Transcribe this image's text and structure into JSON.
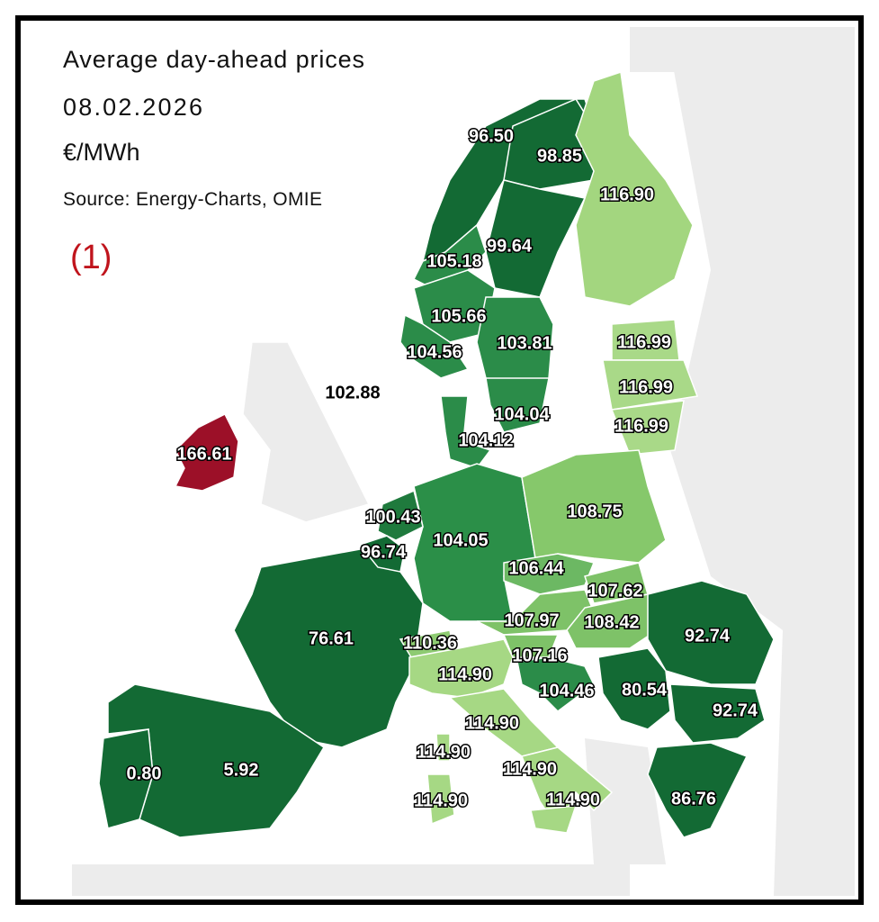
{
  "header": {
    "title": "Average day-ahead prices",
    "date": "08.02.2026",
    "unit": "€/MWh",
    "source": "Source: Energy-Charts, OMIE",
    "note": "(1)"
  },
  "regions": [
    {
      "label": "96.50",
      "color": "#136a34"
    },
    {
      "label": "98.85",
      "color": "#136a34"
    },
    {
      "label": "116.90",
      "color": "#a3d67f"
    },
    {
      "label": "99.64",
      "color": "#136a34"
    },
    {
      "label": "105.18",
      "color": "#2b8c49"
    },
    {
      "label": "105.66",
      "color": "#2b8c49"
    },
    {
      "label": "104.56",
      "color": "#2b8c49"
    },
    {
      "label": "103.81",
      "color": "#2b8c49"
    },
    {
      "label": "116.99",
      "color": "#a9d988"
    },
    {
      "label": "116.99",
      "color": "#a9d988"
    },
    {
      "label": "116.99",
      "color": "#a9d988"
    },
    {
      "label": "102.88",
      "color": "#ececec"
    },
    {
      "label": "104.04",
      "color": "#2b8c49"
    },
    {
      "label": "104.12",
      "color": "#2b8c49"
    },
    {
      "label": "166.61",
      "color": "#9c1028"
    },
    {
      "label": "100.43",
      "color": "#1f7a3d"
    },
    {
      "label": "104.05",
      "color": "#2b8f48"
    },
    {
      "label": "108.75",
      "color": "#86c86b"
    },
    {
      "label": "96.74",
      "color": "#136a34"
    },
    {
      "label": "106.44",
      "color": "#6cb863"
    },
    {
      "label": "107.62",
      "color": "#7ec268"
    },
    {
      "label": "107.97",
      "color": "#7ec268"
    },
    {
      "label": "108.42",
      "color": "#7ec268"
    },
    {
      "label": "92.74",
      "color": "#136a34"
    },
    {
      "label": "76.61",
      "color": "#136a34"
    },
    {
      "label": "110.36",
      "color": "#8ecb72"
    },
    {
      "label": "107.16",
      "color": "#7ec268"
    },
    {
      "label": "114.90",
      "color": "#a6d884"
    },
    {
      "label": "104.46",
      "color": "#2b8c49"
    },
    {
      "label": "80.54",
      "color": "#136a34"
    },
    {
      "label": "92.74",
      "color": "#136a34"
    },
    {
      "label": "114.90",
      "color": "#a6d884"
    },
    {
      "label": "114.90",
      "color": "#a6d884"
    },
    {
      "label": "114.90",
      "color": "#a6d884"
    },
    {
      "label": "0.80",
      "color": "#136a34"
    },
    {
      "label": "5.92",
      "color": "#136a34"
    },
    {
      "label": "114.90",
      "color": "#a6d884"
    },
    {
      "label": "114.90",
      "color": "#a6d884"
    },
    {
      "label": "86.76",
      "color": "#136a34"
    }
  ]
}
